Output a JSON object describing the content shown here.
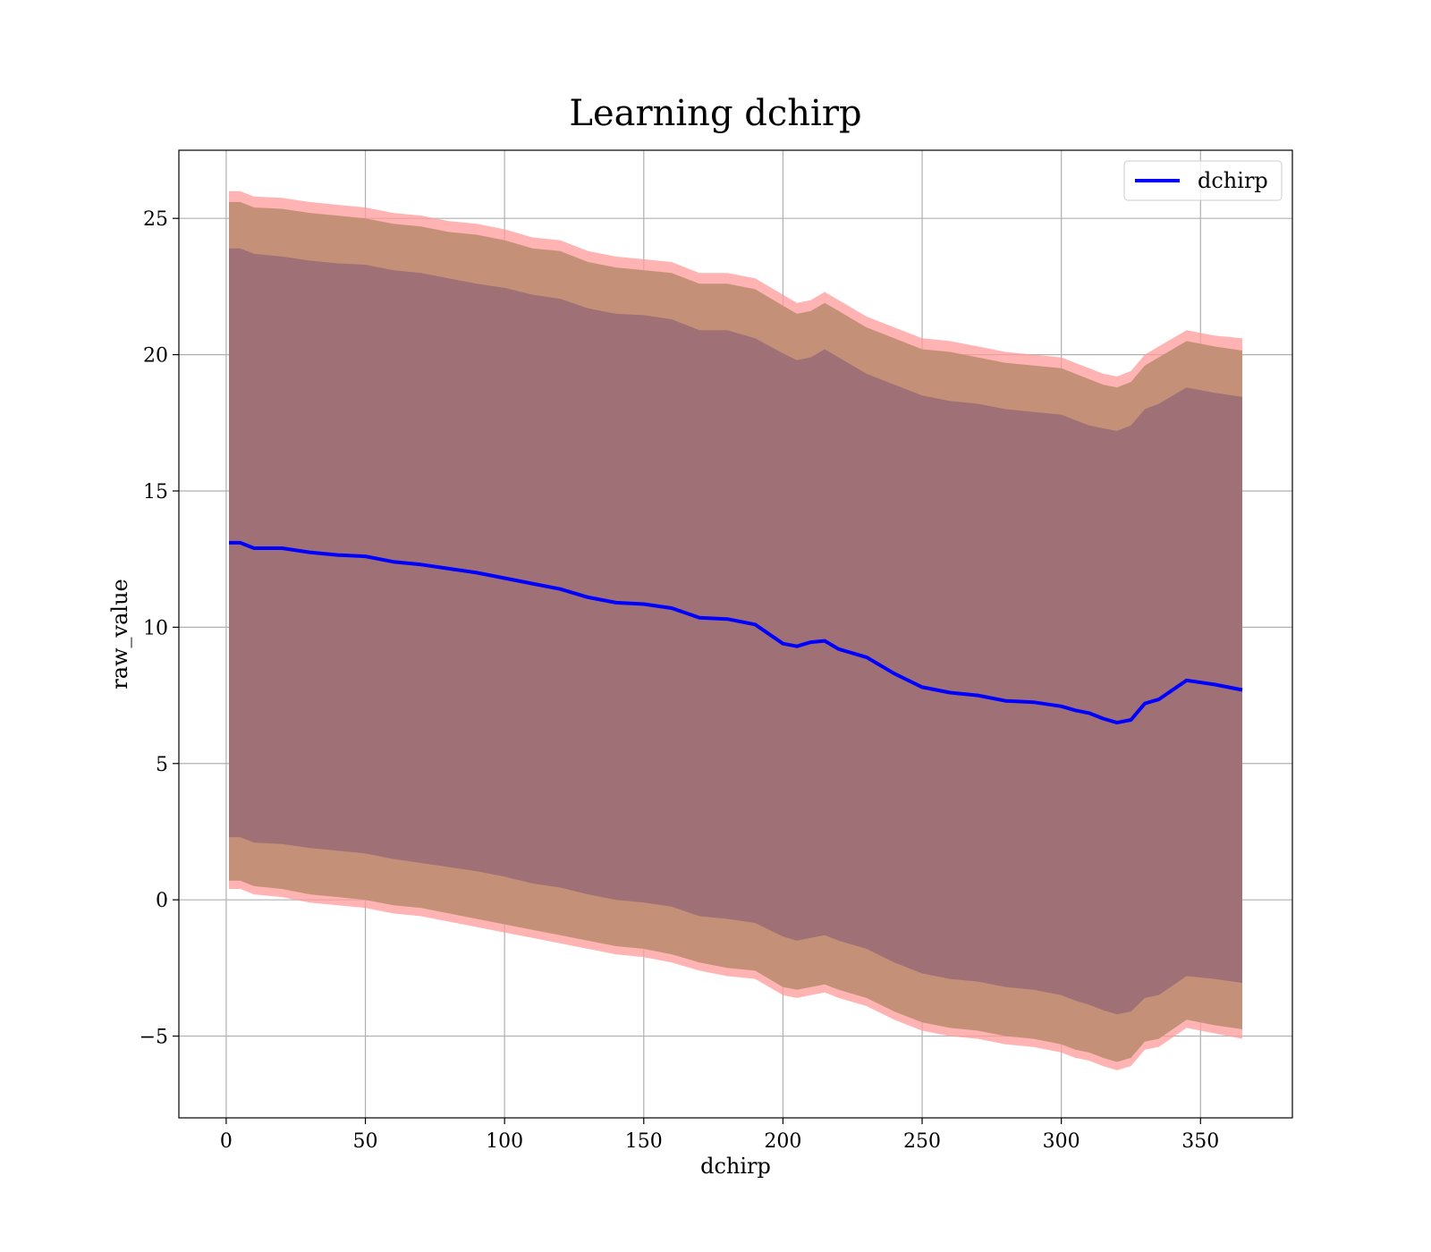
{
  "chart_data": {
    "type": "line",
    "title": "Learning dchirp",
    "xlabel": "dchirp",
    "ylabel": "raw_value",
    "xlim": [
      -17,
      383
    ],
    "ylim": [
      -8,
      27.5
    ],
    "xticks": [
      0,
      50,
      100,
      150,
      200,
      250,
      300,
      350
    ],
    "yticks": [
      -5,
      0,
      5,
      10,
      15,
      20,
      25
    ],
    "ytick_labels": [
      "−5",
      "0",
      "5",
      "10",
      "15",
      "20",
      "25"
    ],
    "grid": true,
    "legend_position": "top-right",
    "colors": {
      "line": "#0000ff",
      "band_outer": "#ff9999",
      "band_middle": "#c49178",
      "band_inner": "#a07077"
    },
    "series": [
      {
        "name": "dchirp",
        "role": "mean",
        "x": [
          1,
          5,
          10,
          20,
          30,
          40,
          50,
          60,
          70,
          80,
          90,
          100,
          110,
          120,
          130,
          140,
          150,
          160,
          170,
          180,
          190,
          200,
          205,
          210,
          215,
          220,
          230,
          240,
          250,
          260,
          270,
          280,
          290,
          300,
          305,
          310,
          315,
          320,
          325,
          330,
          335,
          345,
          355,
          365
        ],
        "y": [
          13.1,
          13.1,
          12.9,
          12.9,
          12.75,
          12.65,
          12.6,
          12.4,
          12.3,
          12.15,
          12.0,
          11.8,
          11.6,
          11.4,
          11.1,
          10.9,
          10.85,
          10.7,
          10.35,
          10.3,
          10.1,
          9.4,
          9.3,
          9.45,
          9.5,
          9.2,
          8.9,
          8.3,
          7.8,
          7.6,
          7.5,
          7.3,
          7.25,
          7.1,
          6.95,
          6.85,
          6.65,
          6.5,
          6.6,
          7.2,
          7.35,
          8.05,
          7.9,
          7.7
        ]
      },
      {
        "role": "band_outer",
        "x": [
          1,
          5,
          10,
          20,
          30,
          40,
          50,
          60,
          70,
          80,
          90,
          100,
          110,
          120,
          130,
          140,
          150,
          160,
          170,
          180,
          190,
          200,
          205,
          210,
          215,
          220,
          230,
          240,
          250,
          260,
          270,
          280,
          290,
          300,
          305,
          310,
          315,
          320,
          325,
          330,
          335,
          345,
          355,
          365
        ],
        "upper": [
          26.0,
          26.0,
          25.8,
          25.75,
          25.6,
          25.5,
          25.4,
          25.2,
          25.1,
          24.9,
          24.8,
          24.6,
          24.3,
          24.2,
          23.8,
          23.6,
          23.5,
          23.4,
          23.0,
          23.0,
          22.8,
          22.2,
          21.9,
          22.0,
          22.3,
          22.0,
          21.4,
          21.0,
          20.6,
          20.5,
          20.3,
          20.1,
          20.0,
          19.9,
          19.7,
          19.5,
          19.3,
          19.2,
          19.4,
          20.0,
          20.3,
          20.9,
          20.7,
          20.6
        ],
        "lower": [
          0.4,
          0.4,
          0.2,
          0.1,
          -0.1,
          -0.2,
          -0.3,
          -0.5,
          -0.6,
          -0.8,
          -1.0,
          -1.2,
          -1.4,
          -1.6,
          -1.8,
          -2.0,
          -2.1,
          -2.3,
          -2.6,
          -2.8,
          -2.9,
          -3.5,
          -3.6,
          -3.5,
          -3.4,
          -3.6,
          -3.9,
          -4.4,
          -4.8,
          -5.0,
          -5.1,
          -5.3,
          -5.4,
          -5.6,
          -5.8,
          -5.9,
          -6.1,
          -6.25,
          -6.1,
          -5.5,
          -5.4,
          -4.7,
          -4.9,
          -5.1
        ]
      },
      {
        "role": "band_middle",
        "x": [
          1,
          5,
          10,
          20,
          30,
          40,
          50,
          60,
          70,
          80,
          90,
          100,
          110,
          120,
          130,
          140,
          150,
          160,
          170,
          180,
          190,
          200,
          205,
          210,
          215,
          220,
          230,
          240,
          250,
          260,
          270,
          280,
          290,
          300,
          305,
          310,
          315,
          320,
          325,
          330,
          335,
          345,
          355,
          365
        ],
        "upper": [
          25.6,
          25.6,
          25.4,
          25.35,
          25.2,
          25.1,
          25.0,
          24.8,
          24.7,
          24.5,
          24.4,
          24.2,
          23.9,
          23.8,
          23.4,
          23.2,
          23.1,
          23.0,
          22.6,
          22.6,
          22.4,
          21.8,
          21.5,
          21.6,
          21.9,
          21.6,
          21.0,
          20.6,
          20.2,
          20.1,
          19.9,
          19.7,
          19.6,
          19.5,
          19.3,
          19.1,
          18.9,
          18.8,
          19.0,
          19.6,
          19.9,
          20.5,
          20.3,
          20.15
        ],
        "lower": [
          0.7,
          0.7,
          0.5,
          0.4,
          0.2,
          0.1,
          0.0,
          -0.2,
          -0.3,
          -0.5,
          -0.7,
          -0.9,
          -1.1,
          -1.3,
          -1.5,
          -1.7,
          -1.8,
          -2.0,
          -2.3,
          -2.5,
          -2.6,
          -3.2,
          -3.3,
          -3.2,
          -3.1,
          -3.3,
          -3.6,
          -4.1,
          -4.5,
          -4.7,
          -4.8,
          -5.0,
          -5.1,
          -5.3,
          -5.5,
          -5.6,
          -5.8,
          -5.95,
          -5.8,
          -5.2,
          -5.1,
          -4.4,
          -4.6,
          -4.75
        ]
      },
      {
        "role": "band_inner",
        "x": [
          1,
          5,
          10,
          20,
          30,
          40,
          50,
          60,
          70,
          80,
          90,
          100,
          110,
          120,
          130,
          140,
          150,
          160,
          170,
          180,
          190,
          200,
          205,
          210,
          215,
          220,
          230,
          240,
          250,
          260,
          270,
          280,
          290,
          300,
          305,
          310,
          315,
          320,
          325,
          330,
          335,
          345,
          355,
          365
        ],
        "upper": [
          23.9,
          23.9,
          23.7,
          23.6,
          23.45,
          23.35,
          23.3,
          23.1,
          23.0,
          22.8,
          22.6,
          22.45,
          22.2,
          22.05,
          21.7,
          21.5,
          21.45,
          21.3,
          20.9,
          20.9,
          20.6,
          20.05,
          19.8,
          19.9,
          20.2,
          19.9,
          19.3,
          18.9,
          18.5,
          18.3,
          18.2,
          18.0,
          17.9,
          17.8,
          17.6,
          17.4,
          17.3,
          17.2,
          17.4,
          18.0,
          18.2,
          18.8,
          18.6,
          18.45
        ],
        "lower": [
          2.3,
          2.3,
          2.1,
          2.05,
          1.9,
          1.8,
          1.7,
          1.5,
          1.35,
          1.2,
          1.05,
          0.85,
          0.6,
          0.45,
          0.2,
          0.0,
          -0.1,
          -0.25,
          -0.6,
          -0.7,
          -0.85,
          -1.35,
          -1.5,
          -1.4,
          -1.3,
          -1.5,
          -1.8,
          -2.3,
          -2.7,
          -2.9,
          -3.0,
          -3.2,
          -3.3,
          -3.5,
          -3.7,
          -3.85,
          -4.05,
          -4.2,
          -4.1,
          -3.6,
          -3.5,
          -2.8,
          -2.9,
          -3.05
        ]
      }
    ]
  }
}
